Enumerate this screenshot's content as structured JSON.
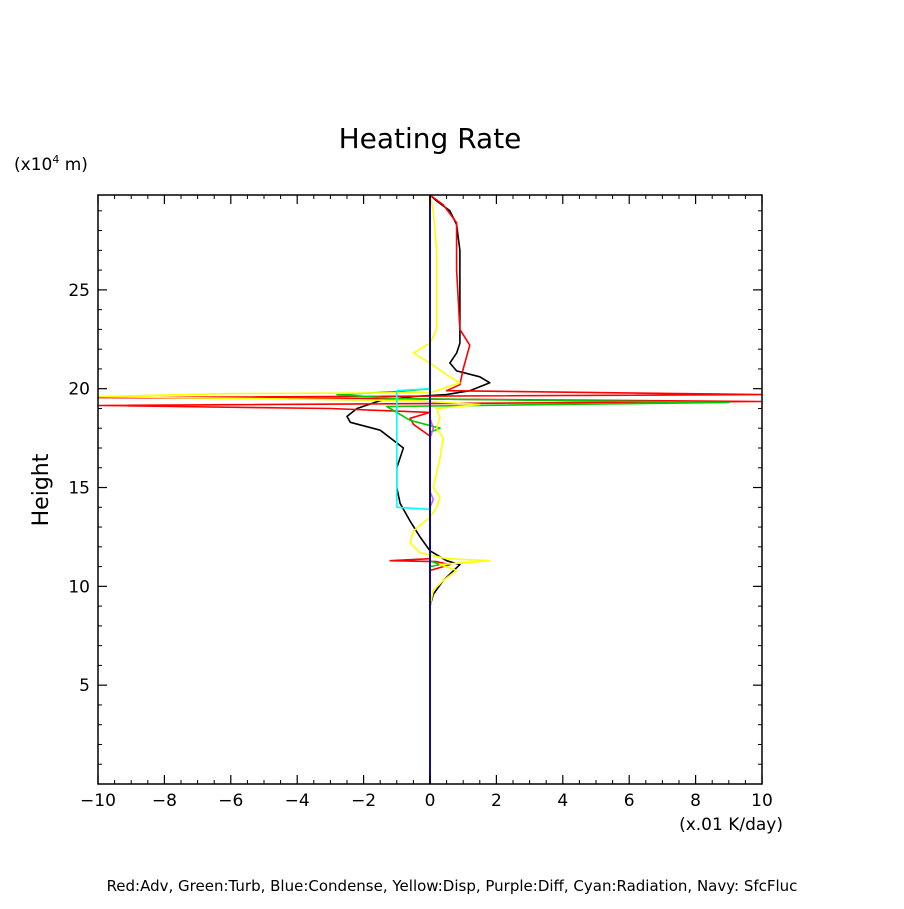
{
  "chart_data": {
    "type": "line",
    "title": "Heating Rate",
    "xlabel": "",
    "xunit": "(x.01 K/day)",
    "ylabel": "Height",
    "yunit_prefix": "(x10",
    "yunit_exp": "4",
    "yunit_suffix": " m)",
    "xlim": [
      -10,
      10
    ],
    "ylim": [
      0,
      29.8
    ],
    "xticks": [
      -10,
      -8,
      -6,
      -4,
      -2,
      0,
      2,
      4,
      6,
      8,
      10
    ],
    "yticks": [
      5,
      10,
      15,
      20,
      25
    ],
    "grid": false,
    "legend_text": "Red:Adv, Green:Turb, Blue:Condense, Yellow:Disp, Purple:Diff, Cyan:Radiation, Navy: SfcFluc",
    "series": [
      {
        "color": "#000000",
        "points": [
          [
            0,
            0
          ],
          [
            0,
            8
          ],
          [
            0,
            9
          ],
          [
            0.1,
            9.6
          ],
          [
            0.4,
            10.3
          ],
          [
            0.9,
            11.1
          ],
          [
            0.5,
            11.3
          ],
          [
            0,
            11.8
          ],
          [
            -0.3,
            12.5
          ],
          [
            -0.6,
            13.3
          ],
          [
            -0.9,
            14.2
          ],
          [
            -1,
            15
          ],
          [
            -1,
            16
          ],
          [
            -0.8,
            17
          ],
          [
            -1.5,
            17.9
          ],
          [
            -2.4,
            18.3
          ],
          [
            -2.5,
            18.6
          ],
          [
            -2.2,
            19
          ],
          [
            -1.5,
            19.4
          ],
          [
            -0.5,
            19.6
          ],
          [
            0.5,
            19.7
          ],
          [
            1.2,
            19.9
          ],
          [
            1.8,
            20.3
          ],
          [
            1.5,
            20.6
          ],
          [
            0.8,
            20.9
          ],
          [
            0.6,
            21.3
          ],
          [
            0.8,
            21.8
          ],
          [
            0.9,
            22.3
          ],
          [
            0.9,
            23
          ],
          [
            0.9,
            27
          ],
          [
            0.8,
            28.3
          ],
          [
            0.6,
            29
          ],
          [
            0.2,
            29.5
          ],
          [
            0,
            29.8
          ]
        ]
      },
      {
        "color": "#ff0000",
        "points": [
          [
            0,
            0
          ],
          [
            0,
            10.2
          ],
          [
            0,
            10.8
          ],
          [
            0.6,
            11.1
          ],
          [
            0.2,
            11.25
          ],
          [
            -1.2,
            11.3
          ],
          [
            0,
            11.4
          ],
          [
            0,
            17.6
          ],
          [
            -0.5,
            18.2
          ],
          [
            -0.6,
            18.5
          ],
          [
            0,
            18.8
          ],
          [
            -3,
            19.0
          ],
          [
            -10,
            19.15
          ],
          [
            10,
            19.35
          ],
          [
            -2,
            19.5
          ],
          [
            -10,
            19.55
          ],
          [
            10,
            19.7
          ],
          [
            0.5,
            19.9
          ],
          [
            0.9,
            20.2
          ],
          [
            1,
            21
          ],
          [
            1.2,
            22.2
          ],
          [
            0.9,
            23
          ],
          [
            0.8,
            26
          ],
          [
            0.8,
            28.4
          ],
          [
            0.4,
            29.3
          ],
          [
            0,
            29.8
          ]
        ]
      },
      {
        "color": "#00cc00",
        "points": [
          [
            0,
            0
          ],
          [
            0,
            11
          ],
          [
            0.3,
            11.1
          ],
          [
            0,
            11.3
          ],
          [
            0,
            17.8
          ],
          [
            0.3,
            18
          ],
          [
            -0.6,
            18.4
          ],
          [
            -1.3,
            19.1
          ],
          [
            9,
            19.3
          ],
          [
            -1,
            19.5
          ],
          [
            -2.8,
            19.7
          ],
          [
            -1,
            19.85
          ],
          [
            0,
            20
          ],
          [
            0,
            29.8
          ]
        ]
      },
      {
        "color": "#ffff00",
        "points": [
          [
            0,
            0
          ],
          [
            0,
            9
          ],
          [
            0.1,
            9.8
          ],
          [
            0.4,
            10.3
          ],
          [
            0.8,
            10.8
          ],
          [
            0.3,
            11.1
          ],
          [
            1.8,
            11.3
          ],
          [
            0.5,
            11.4
          ],
          [
            -0.3,
            11.7
          ],
          [
            -0.6,
            12.2
          ],
          [
            -0.5,
            12.8
          ],
          [
            0,
            13.5
          ],
          [
            0.2,
            14
          ],
          [
            0.3,
            14.5
          ],
          [
            0.1,
            15
          ],
          [
            0.3,
            16.5
          ],
          [
            0.4,
            17.5
          ],
          [
            0.2,
            18
          ],
          [
            0.3,
            18.5
          ],
          [
            0.2,
            19
          ],
          [
            1.5,
            19.2
          ],
          [
            -0.5,
            19.4
          ],
          [
            -10,
            19.6
          ],
          [
            -6,
            19.75
          ],
          [
            0,
            19.8
          ],
          [
            0.9,
            20.3
          ],
          [
            0.5,
            20.7
          ],
          [
            0,
            21.3
          ],
          [
            -0.5,
            21.8
          ],
          [
            0,
            22.3
          ],
          [
            0.2,
            23
          ],
          [
            0.2,
            27
          ],
          [
            0.1,
            29
          ],
          [
            0,
            29.8
          ]
        ]
      },
      {
        "color": "#cc66cc",
        "points": [
          [
            0,
            0
          ],
          [
            0,
            14
          ],
          [
            0.1,
            14.4
          ],
          [
            0,
            14.8
          ],
          [
            0,
            17.5
          ],
          [
            0.1,
            18
          ],
          [
            0,
            18.5
          ],
          [
            0,
            29.8
          ]
        ]
      },
      {
        "color": "#00ffff",
        "points": [
          [
            0,
            13.9
          ],
          [
            -1,
            14
          ],
          [
            -1,
            19.9
          ],
          [
            0,
            20
          ]
        ]
      },
      {
        "color": "#0000ff",
        "points": [
          [
            0,
            0
          ],
          [
            0,
            29.8
          ]
        ]
      },
      {
        "color": "#000080",
        "points": [
          [
            0,
            0
          ],
          [
            0,
            29.8
          ]
        ]
      }
    ]
  }
}
